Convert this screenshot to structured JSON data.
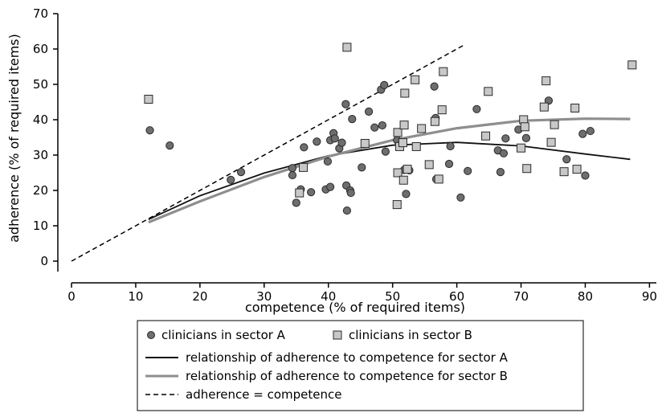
{
  "chart_data": {
    "type": "scatter",
    "xlabel": "competence (% of required items)",
    "ylabel": "adherence (% of required items)",
    "xlim": [
      0,
      90
    ],
    "ylim": [
      0,
      70
    ],
    "x_ticks": [
      0,
      10,
      20,
      30,
      40,
      50,
      60,
      70,
      80,
      90
    ],
    "y_ticks": [
      0,
      10,
      20,
      30,
      40,
      50,
      60,
      70
    ],
    "grid": false,
    "legend_position": "bottom",
    "series": [
      {
        "name": "clinicians in sector A",
        "kind": "scatter",
        "marker": "circle",
        "color": "#6e6e6e",
        "points": [
          [
            12.2,
            37
          ],
          [
            15.3,
            32.7
          ],
          [
            24.8,
            23
          ],
          [
            26.4,
            25.2
          ],
          [
            34.4,
            26.3
          ],
          [
            34.4,
            24.3
          ],
          [
            35,
            16.5
          ],
          [
            35.7,
            20.3
          ],
          [
            36.2,
            32.2
          ],
          [
            37.3,
            19.5
          ],
          [
            38.2,
            33.8
          ],
          [
            39.6,
            20.3
          ],
          [
            39.9,
            28.2
          ],
          [
            40.3,
            34.2
          ],
          [
            40.3,
            21
          ],
          [
            40.8,
            36.2
          ],
          [
            41,
            34.7
          ],
          [
            41.7,
            31.9
          ],
          [
            42.1,
            33.5
          ],
          [
            42.7,
            44.4
          ],
          [
            42.8,
            21.4
          ],
          [
            42.9,
            14.3
          ],
          [
            43.4,
            20
          ],
          [
            43.5,
            19.3
          ],
          [
            43.7,
            40.2
          ],
          [
            45.2,
            26.5
          ],
          [
            46.3,
            42.3
          ],
          [
            47.2,
            37.8
          ],
          [
            48.2,
            48.5
          ],
          [
            48.4,
            38.4
          ],
          [
            48.7,
            49.8
          ],
          [
            48.9,
            31
          ],
          [
            50.7,
            34.2
          ],
          [
            51.8,
            25.8
          ],
          [
            52.1,
            19
          ],
          [
            52.6,
            25.7
          ],
          [
            56.5,
            49.4
          ],
          [
            56.7,
            40.5
          ],
          [
            56.8,
            23.2
          ],
          [
            58.8,
            27.5
          ],
          [
            59,
            32.5
          ],
          [
            60.6,
            18
          ],
          [
            61.7,
            25.5
          ],
          [
            63.1,
            43
          ],
          [
            66.4,
            31.3
          ],
          [
            66.8,
            25.2
          ],
          [
            67.3,
            30.5
          ],
          [
            67.6,
            34.7
          ],
          [
            69.6,
            37.2
          ],
          [
            70.8,
            34.8
          ],
          [
            74.3,
            45.4
          ],
          [
            77.1,
            28.8
          ],
          [
            79.6,
            36
          ],
          [
            80,
            24.2
          ],
          [
            80.8,
            36.8
          ]
        ]
      },
      {
        "name": "clinicians in sector B",
        "kind": "scatter",
        "marker": "square",
        "color": "#c8c8c8",
        "points": [
          [
            12,
            45.8
          ],
          [
            35.5,
            19.3
          ],
          [
            36.1,
            26.5
          ],
          [
            42.9,
            60.5
          ],
          [
            45.7,
            33.3
          ],
          [
            50.7,
            16
          ],
          [
            50.8,
            25
          ],
          [
            50.8,
            36.4
          ],
          [
            51.1,
            32.4
          ],
          [
            51.6,
            33.5
          ],
          [
            51.7,
            22.9
          ],
          [
            51.8,
            38.5
          ],
          [
            51.9,
            47.5
          ],
          [
            52.3,
            26
          ],
          [
            53.5,
            51.3
          ],
          [
            53.7,
            32.4
          ],
          [
            54.5,
            37.5
          ],
          [
            55.7,
            27.3
          ],
          [
            56.6,
            39.5
          ],
          [
            57.2,
            23.2
          ],
          [
            57.7,
            42.8
          ],
          [
            57.9,
            53.6
          ],
          [
            64.5,
            35.4
          ],
          [
            64.9,
            48
          ],
          [
            70,
            32
          ],
          [
            70.4,
            40
          ],
          [
            70.6,
            38
          ],
          [
            70.9,
            26.2
          ],
          [
            73.6,
            43.6
          ],
          [
            73.9,
            51
          ],
          [
            74.7,
            33.6
          ],
          [
            75.2,
            38.6
          ],
          [
            76.7,
            25.3
          ],
          [
            78.4,
            43.3
          ],
          [
            78.7,
            26
          ],
          [
            87.3,
            55.5
          ]
        ]
      },
      {
        "name": "relationship of adherence to competence for sector A",
        "kind": "curve",
        "color": "#111111",
        "line_style": "solid",
        "x": [
          12,
          20,
          30,
          40,
          50,
          60,
          70,
          80,
          87
        ],
        "y": [
          11.8,
          18.5,
          24.9,
          29.8,
          32.8,
          33.6,
          32.6,
          30.3,
          28.8
        ]
      },
      {
        "name": "relationship of adherence to competence for sector B",
        "kind": "curve",
        "color": "#8e8e8e",
        "line_style": "solid",
        "x": [
          12,
          20,
          30,
          40,
          50,
          60,
          70,
          80,
          87
        ],
        "y": [
          11,
          16.9,
          23.8,
          29.6,
          34.2,
          37.6,
          39.7,
          40.3,
          40.2
        ]
      },
      {
        "name": "adherence = competence",
        "kind": "curve",
        "color": "#000000",
        "line_style": "dashed",
        "x": [
          0,
          61
        ],
        "y": [
          0,
          61
        ]
      }
    ],
    "legend": [
      [
        "clinicians in sector A",
        "clinicians in sector B"
      ],
      [
        "relationship of adherence to competence for sector A"
      ],
      [
        "relationship of adherence to competence for sector B"
      ],
      [
        "adherence = competence"
      ]
    ]
  }
}
